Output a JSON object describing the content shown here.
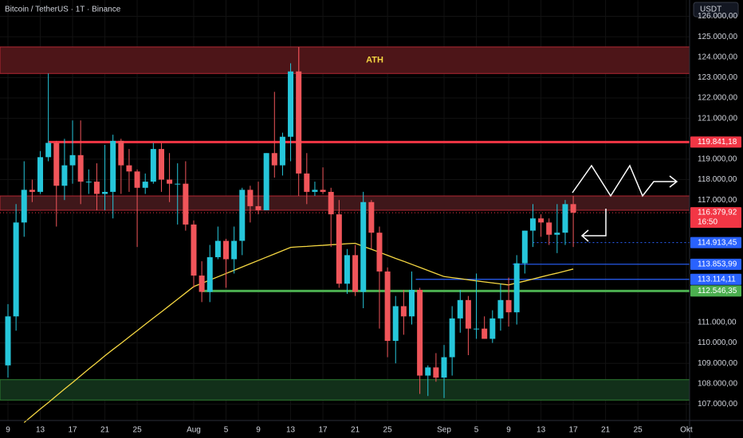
{
  "chart_data": {
    "type": "candlestick",
    "title": "Bitcoin / TetherUS · 1T · Binance",
    "currency": "USDT",
    "categories": [
      "9",
      null,
      null,
      null,
      "13",
      null,
      null,
      null,
      "17",
      null,
      null,
      null,
      "21",
      null,
      null,
      null,
      "25",
      null,
      null,
      null,
      null,
      null,
      null,
      "Aug",
      null,
      null,
      null,
      "5",
      null,
      null,
      null,
      "9",
      null,
      null,
      null,
      "13",
      null,
      null,
      null,
      "17",
      null,
      null,
      null,
      "21",
      null,
      null,
      null,
      "25",
      null,
      null,
      null,
      null,
      null,
      null,
      "Sep",
      null,
      null,
      null,
      "5",
      null,
      null,
      null,
      "9",
      null,
      null,
      null,
      "13",
      null,
      null,
      null,
      "17",
      null,
      null,
      null,
      "21",
      null,
      null,
      null,
      "25",
      null,
      null,
      null,
      null,
      null,
      "Okt"
    ],
    "open": [
      108900,
      111300,
      115900,
      117500,
      117400,
      119100,
      119800,
      117700,
      118700,
      119200,
      117900,
      117900,
      117300,
      117400,
      119900,
      118700,
      118400,
      117600,
      117900,
      119500,
      118000,
      117800,
      117800,
      115800,
      113300,
      112500,
      114200,
      115000,
      114100,
      115000,
      117500,
      116700,
      116500,
      119300,
      118700,
      120100,
      123300,
      118300,
      117400,
      117500,
      117400,
      116300,
      112900,
      114300,
      112500,
      116900,
      115400,
      113500,
      110100,
      111800,
      111300,
      112600,
      108400,
      108800,
      108300,
      109300,
      111200,
      112100,
      110700,
      110700,
      110200,
      111200,
      112100,
      111500,
      113900,
      115500,
      116100,
      115900,
      115300,
      115400,
      116800,
      null,
      null,
      null,
      null,
      null,
      null,
      null,
      null,
      null,
      null,
      null,
      null,
      null,
      null
    ],
    "high": [
      111900,
      116800,
      118900,
      118000,
      119400,
      123200,
      119900,
      120000,
      120900,
      120900,
      118500,
      118800,
      119700,
      120200,
      120000,
      119500,
      118500,
      118300,
      119800,
      119800,
      119300,
      118800,
      118900,
      116000,
      114000,
      114800,
      115700,
      115100,
      115700,
      117600,
      117700,
      117900,
      119300,
      122300,
      120300,
      123700,
      124500,
      119300,
      117900,
      118600,
      117600,
      117000,
      114600,
      114800,
      117400,
      117000,
      115700,
      113700,
      112300,
      112600,
      113500,
      112700,
      108900,
      109500,
      109900,
      111800,
      112600,
      112300,
      113400,
      111300,
      111600,
      112900,
      113200,
      114300,
      115500,
      116800,
      116300,
      116100,
      116800,
      117000,
      117200,
      null,
      null,
      null,
      null,
      null,
      null,
      null,
      null,
      null,
      null,
      null,
      null,
      null,
      null
    ],
    "low": [
      108300,
      110600,
      115200,
      116900,
      117300,
      118900,
      115700,
      117000,
      117800,
      116800,
      117300,
      116500,
      116500,
      116100,
      117300,
      117400,
      114700,
      117300,
      117800,
      117400,
      116900,
      115800,
      115500,
      112700,
      112000,
      112000,
      114100,
      112700,
      113400,
      114300,
      115900,
      116300,
      116500,
      118100,
      118200,
      118900,
      117200,
      116800,
      117200,
      117300,
      114700,
      112700,
      112400,
      112300,
      111700,
      114600,
      110700,
      109300,
      109000,
      110400,
      110900,
      107500,
      107400,
      108100,
      107300,
      108400,
      110500,
      109400,
      110200,
      110200,
      110000,
      110600,
      110800,
      110900,
      113400,
      114700,
      115200,
      114800,
      114400,
      114800,
      114700,
      null,
      null,
      null,
      null,
      null,
      null,
      null,
      null,
      null,
      null,
      null,
      null,
      null,
      null
    ],
    "close": [
      111300,
      115900,
      117500,
      117400,
      119100,
      119800,
      117700,
      118700,
      119200,
      117900,
      117900,
      117300,
      117400,
      119900,
      118700,
      118400,
      117600,
      117900,
      119500,
      118000,
      117800,
      117800,
      115800,
      113300,
      112500,
      114200,
      115000,
      114100,
      115000,
      117500,
      116700,
      116500,
      119300,
      118700,
      120100,
      123300,
      118300,
      117400,
      117500,
      117400,
      116300,
      112900,
      114300,
      112500,
      116900,
      115400,
      113500,
      110100,
      111800,
      111300,
      112600,
      108400,
      108800,
      108300,
      109300,
      111200,
      112100,
      110700,
      110700,
      110200,
      111200,
      112100,
      111500,
      113900,
      115500,
      116100,
      115900,
      115300,
      115400,
      116800,
      116379.92,
      null,
      null,
      null,
      null,
      null,
      null,
      null,
      null,
      null,
      null,
      null,
      null,
      null,
      null
    ],
    "up_color": "#26c6da",
    "down_color": "#f0555a",
    "moving_average": {
      "color": "#f5d742",
      "values": [
        null,
        null,
        106100,
        106430,
        106760,
        107080,
        107410,
        107740,
        108060,
        108390,
        108720,
        109040,
        109370,
        109680,
        109980,
        110290,
        110600,
        110910,
        111220,
        111520,
        111830,
        112140,
        112450,
        112760,
        112920,
        113080,
        113240,
        113400,
        113560,
        113720,
        113880,
        114040,
        114200,
        114360,
        114520,
        114680,
        114710,
        114730,
        114760,
        114780,
        114810,
        114830,
        114860,
        114880,
        114730,
        114590,
        114440,
        114290,
        114140,
        114000,
        113850,
        113700,
        113550,
        113400,
        113250,
        113200,
        113150,
        113090,
        113040,
        112990,
        112940,
        112890,
        112840,
        112940,
        113030,
        113130,
        113230,
        113330,
        113420,
        113520,
        113620,
        null,
        null,
        null,
        null,
        null,
        null,
        null,
        null,
        null,
        null,
        null,
        null,
        null,
        null
      ]
    },
    "ylim": [
      106200,
      126800
    ],
    "yticks": [
      {
        "value": 126000,
        "label": "126.000,00"
      },
      {
        "value": 125000,
        "label": "125.000,00"
      },
      {
        "value": 124000,
        "label": "124.000,00"
      },
      {
        "value": 123000,
        "label": "123.000,00"
      },
      {
        "value": 122000,
        "label": "122.000,00"
      },
      {
        "value": 121000,
        "label": "121.000,00"
      },
      {
        "value": 119000,
        "label": "119.000,00"
      },
      {
        "value": 118000,
        "label": "118.000,00"
      },
      {
        "value": 117000,
        "label": "117.000,00"
      },
      {
        "value": 111000,
        "label": "111.000,00"
      },
      {
        "value": 110000,
        "label": "110.000,00"
      },
      {
        "value": 109000,
        "label": "109.000,00"
      },
      {
        "value": 108000,
        "label": "108.000,00"
      },
      {
        "value": 107000,
        "label": "107.000,00"
      }
    ],
    "grid": true,
    "zones": [
      {
        "from": 123200,
        "to": 124500,
        "color": "#4d1518",
        "label": "ATH"
      },
      {
        "from": 116500,
        "to": 117200,
        "color": "#3f171a"
      },
      {
        "from": 107200,
        "to": 108200,
        "color": "#12301a"
      }
    ],
    "levels": [
      {
        "value": 119841.18,
        "label": "119.841,18",
        "color": "#f23645"
      },
      {
        "value": 116379.92,
        "label": "116.379,92",
        "color": "#f23645",
        "countdown": "16:50"
      },
      {
        "value": 114913.45,
        "label": "114.913,45",
        "color": "#2962ff"
      },
      {
        "value": 113853.99,
        "label": "113.853,99",
        "color": "#2962ff"
      },
      {
        "value": 113114.11,
        "label": "113.114,11",
        "color": "#2962ff"
      },
      {
        "value": 112546.35,
        "label": "112.546,35",
        "color": "#4caf50"
      }
    ]
  }
}
